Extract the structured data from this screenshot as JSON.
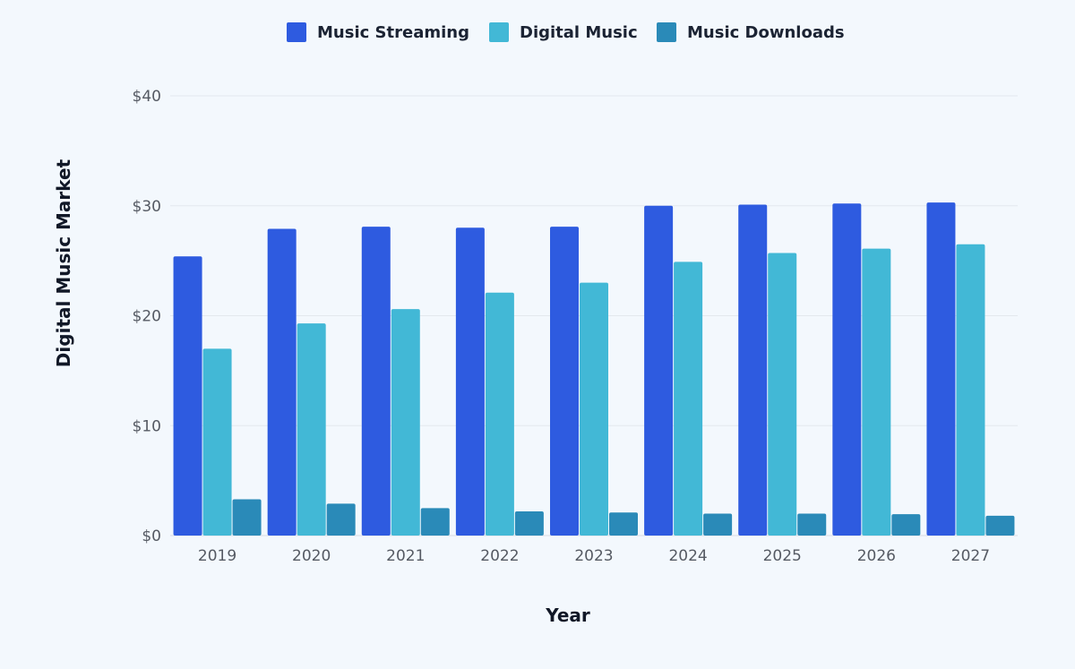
{
  "chart_data": {
    "type": "bar",
    "title": "",
    "xlabel": "Year",
    "ylabel": "Digital Music Market",
    "ylim": [
      0,
      40
    ],
    "yticks": [
      0,
      10,
      20,
      30,
      40
    ],
    "ytick_labels": [
      "$0",
      "$10",
      "$20",
      "$30",
      "$40"
    ],
    "grid": true,
    "legend_position": "top",
    "categories": [
      "2019",
      "2020",
      "2021",
      "2022",
      "2023",
      "2024",
      "2025",
      "2026",
      "2027"
    ],
    "series": [
      {
        "name": "Music Streaming",
        "color": "#2e5be0",
        "values": [
          25.4,
          27.9,
          28.1,
          28.0,
          28.1,
          30.0,
          30.1,
          30.2,
          30.3
        ]
      },
      {
        "name": "Digital Music",
        "color": "#42b8d6",
        "values": [
          17.0,
          19.3,
          20.6,
          22.1,
          23.0,
          24.9,
          25.7,
          26.1,
          26.5
        ]
      },
      {
        "name": "Music Downloads",
        "color": "#2a8ab8",
        "values": [
          3.3,
          2.9,
          2.5,
          2.2,
          2.1,
          2.0,
          2.0,
          1.95,
          1.8
        ]
      }
    ]
  }
}
